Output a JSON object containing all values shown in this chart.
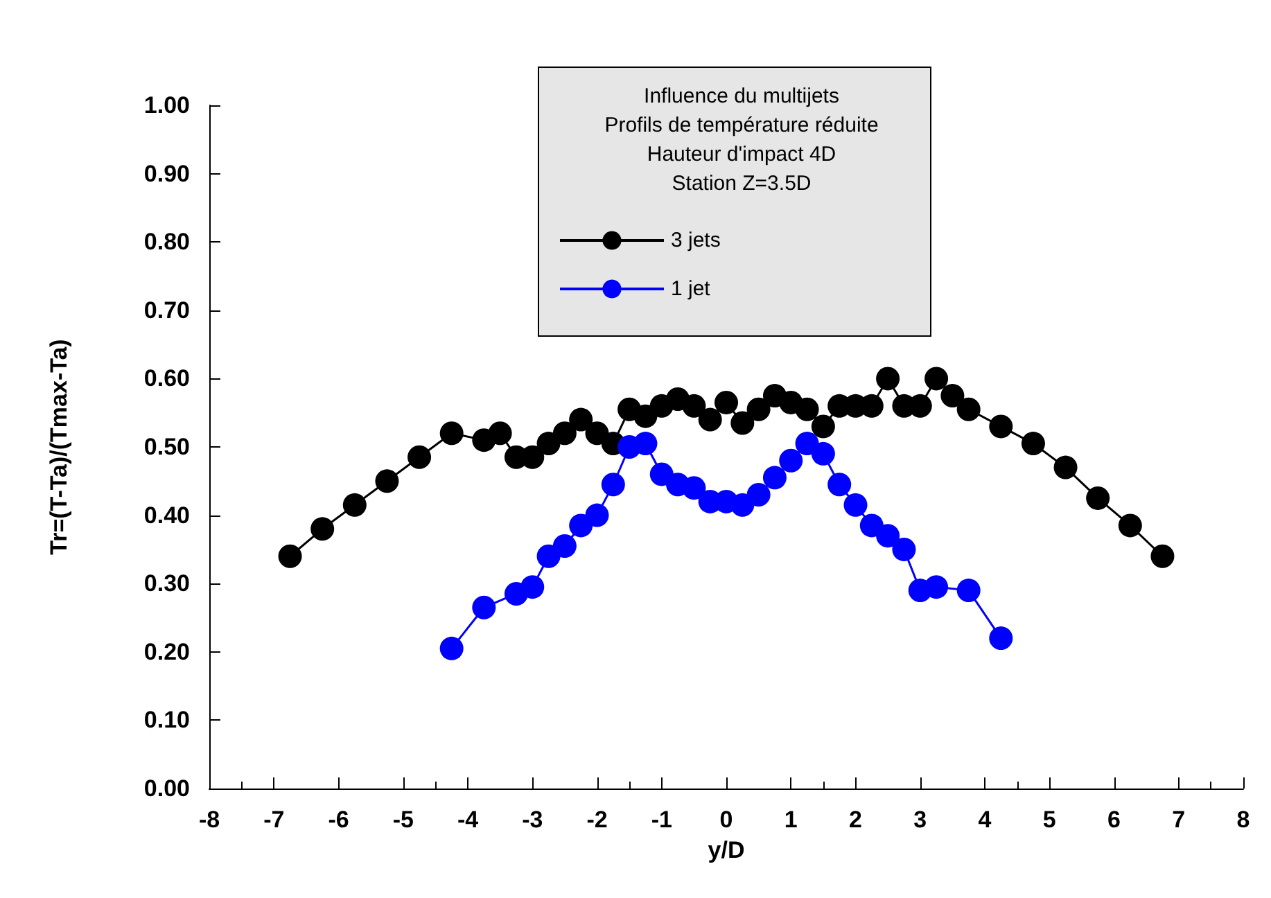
{
  "chart_data": {
    "type": "line",
    "title": "Influence du multijets\nProfils de température réduite\nHauteur d'impact 4D\nStation Z=3.5D",
    "xlabel": "y/D",
    "ylabel": "Tr=(T-Ta)/(Tmax-Ta)",
    "series": [
      {
        "name": "3 jets",
        "color": "#000000",
        "x": [
          -6.75,
          -6.25,
          -5.75,
          -5.25,
          -4.75,
          -4.25,
          -3.75,
          -3.5,
          -3.25,
          -3.0,
          -2.75,
          -2.5,
          -2.25,
          -2.0,
          -1.75,
          -1.5,
          -1.25,
          -1.0,
          -0.75,
          -0.5,
          -0.25,
          0,
          0.25,
          0.5,
          0.75,
          1.0,
          1.25,
          1.5,
          1.75,
          2.0,
          2.25,
          2.5,
          2.75,
          3.0,
          3.25,
          3.5,
          3.75,
          4.25,
          4.75,
          5.25,
          5.75,
          6.25,
          6.75
        ],
        "values": [
          0.34,
          0.38,
          0.415,
          0.45,
          0.485,
          0.52,
          0.51,
          0.52,
          0.485,
          0.485,
          0.505,
          0.52,
          0.54,
          0.52,
          0.505,
          0.555,
          0.545,
          0.56,
          0.57,
          0.56,
          0.54,
          0.565,
          0.535,
          0.555,
          0.575,
          0.565,
          0.555,
          0.53,
          0.56,
          0.56,
          0.56,
          0.6,
          0.56,
          0.56,
          0.6,
          0.575,
          0.555,
          0.53,
          0.505,
          0.47,
          0.425,
          0.385,
          0.34
        ]
      },
      {
        "name": "1 jet",
        "color": "#0000ff",
        "x": [
          -4.25,
          -3.75,
          -3.25,
          -3.0,
          -2.75,
          -2.5,
          -2.25,
          -2.0,
          -1.75,
          -1.5,
          -1.25,
          -1.0,
          -0.75,
          -0.5,
          -0.25,
          0,
          0.25,
          0.5,
          0.75,
          1.0,
          1.25,
          1.5,
          1.75,
          2.0,
          2.25,
          2.5,
          2.75,
          3.0,
          3.25,
          3.75,
          4.25
        ],
        "values": [
          0.205,
          0.265,
          0.285,
          0.295,
          0.34,
          0.355,
          0.385,
          0.4,
          0.445,
          0.5,
          0.505,
          0.46,
          0.445,
          0.44,
          0.42,
          0.42,
          0.415,
          0.43,
          0.455,
          0.48,
          0.505,
          0.49,
          0.445,
          0.415,
          0.385,
          0.37,
          0.35,
          0.29,
          0.295,
          0.29,
          0.22
        ]
      }
    ],
    "xlim": [
      -8,
      8
    ],
    "xticks": [
      -8,
      -7,
      -6,
      -5,
      -4,
      -3,
      -2,
      -1,
      0,
      1,
      2,
      3,
      4,
      5,
      6,
      7,
      8
    ],
    "ylim": [
      0,
      1
    ],
    "yticks": [
      {
        "value": 0,
        "label": "0.00"
      },
      {
        "value": 0.1,
        "label": "0.10"
      },
      {
        "value": 0.2,
        "label": "0.20"
      },
      {
        "value": 0.3,
        "label": "0.30"
      },
      {
        "value": 0.4,
        "label": "0.40"
      },
      {
        "value": 0.5,
        "label": "0.50"
      },
      {
        "value": 0.6,
        "label": "0.60"
      },
      {
        "value": 0.7,
        "label": "0.70"
      },
      {
        "value": 0.8,
        "label": "0.80"
      },
      {
        "value": 0.9,
        "label": "0.90"
      },
      {
        "value": 1,
        "label": "1.00"
      }
    ],
    "grid": false,
    "legend": "top",
    "marker": "circle",
    "line_style": "solid"
  }
}
